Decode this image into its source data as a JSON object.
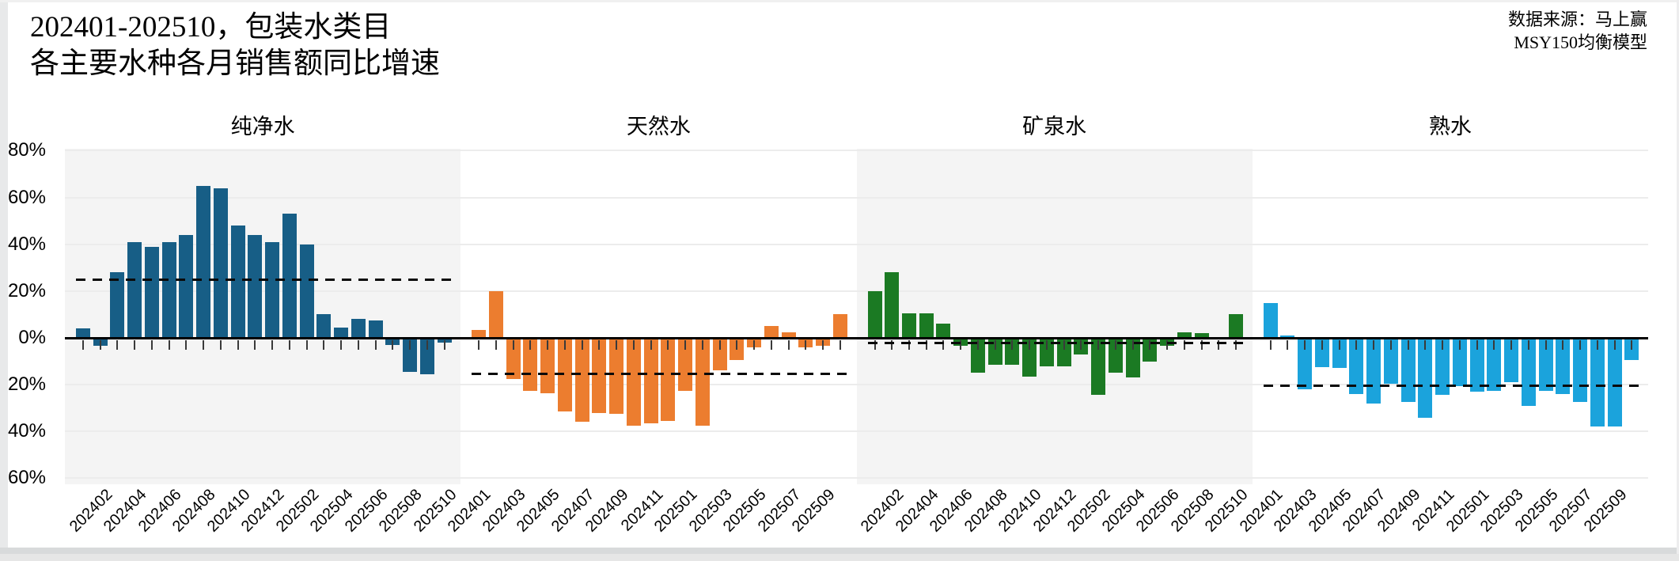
{
  "header": {
    "title_line1": "202401-202510，包装水类目",
    "title_line2": "各主要水种各月销售额同比增速",
    "source_line1": "数据来源：马上赢",
    "source_line2": "MSY150均衡模型"
  },
  "chart_data": {
    "type": "bar",
    "unit": "%",
    "title": "202401-202510，包装水类目 各主要水种各月销售额同比增速",
    "months": [
      "202401",
      "202402",
      "202403",
      "202404",
      "202405",
      "202406",
      "202407",
      "202408",
      "202409",
      "202410",
      "202411",
      "202412",
      "202501",
      "202502",
      "202503",
      "202504",
      "202505",
      "202506",
      "202507",
      "202508",
      "202509",
      "202510"
    ],
    "y_axis": {
      "tick_labels": [
        "80%",
        "60%",
        "40%",
        "20%",
        "0%",
        "-20%",
        "-40%",
        "-60%"
      ],
      "min": -60,
      "max": 80,
      "grid": true
    },
    "legend_position": "none",
    "panels": [
      {
        "title": "纯净水",
        "color": "#175E86",
        "shaded": true,
        "mean_line": 25,
        "label_start_index": 1,
        "tick_labels": [
          "202402",
          "202404",
          "202406",
          "202408",
          "202410",
          "202412",
          "202502",
          "202504",
          "202506",
          "202508",
          "202510"
        ],
        "values": [
          4,
          -3,
          28,
          41,
          39,
          41,
          44,
          65,
          64,
          48,
          44,
          41,
          53,
          40,
          10,
          4.5,
          8,
          7.5,
          -2.5,
          -14,
          -15,
          -1.5
        ]
      },
      {
        "title": "天然水",
        "color": "#EC7D2F",
        "shaded": false,
        "mean_line": -15.5,
        "label_start_index": 0,
        "tick_labels": [
          "202401",
          "202403",
          "202405",
          "202407",
          "202409",
          "202411",
          "202501",
          "202503",
          "202505",
          "202507",
          "202509"
        ],
        "values": [
          3.5,
          20,
          -17,
          -22,
          -23,
          -31,
          -35.5,
          -31.5,
          -32,
          -37,
          -36,
          -35,
          -22,
          -37,
          -13.5,
          -9,
          -3.5,
          5,
          2.5,
          -3.5,
          -3,
          10
        ]
      },
      {
        "title": "矿泉水",
        "color": "#1B7A23",
        "shaded": true,
        "mean_line": -2.2,
        "label_start_index": 1,
        "tick_labels": [
          "202402",
          "202404",
          "202406",
          "202408",
          "202410",
          "202412",
          "202502",
          "202504",
          "202506",
          "202508",
          "202510"
        ],
        "values": [
          20,
          28,
          10.5,
          10.5,
          6,
          -3,
          -14.5,
          -11,
          -11,
          -16,
          -11.5,
          -11.5,
          -6.5,
          -24,
          -14.5,
          -16.5,
          -9.5,
          -3,
          2.5,
          2,
          0,
          10
        ]
      },
      {
        "title": "熟水",
        "color": "#1BA3DC",
        "shaded": false,
        "mean_line": -20.5,
        "label_start_index": 0,
        "tick_labels": [
          "202401",
          "202403",
          "202405",
          "202407",
          "202409",
          "202411",
          "202501",
          "202503",
          "202505",
          "202507",
          "202509"
        ],
        "values": [
          15,
          1,
          -21.5,
          -12,
          -12.5,
          -23.5,
          -27.5,
          -19,
          -27,
          -33.5,
          -24,
          -20,
          -22.5,
          -22,
          -18.5,
          -28.5,
          -22,
          -23.5,
          -27,
          -37.5,
          -37.5,
          -9
        ]
      }
    ]
  }
}
